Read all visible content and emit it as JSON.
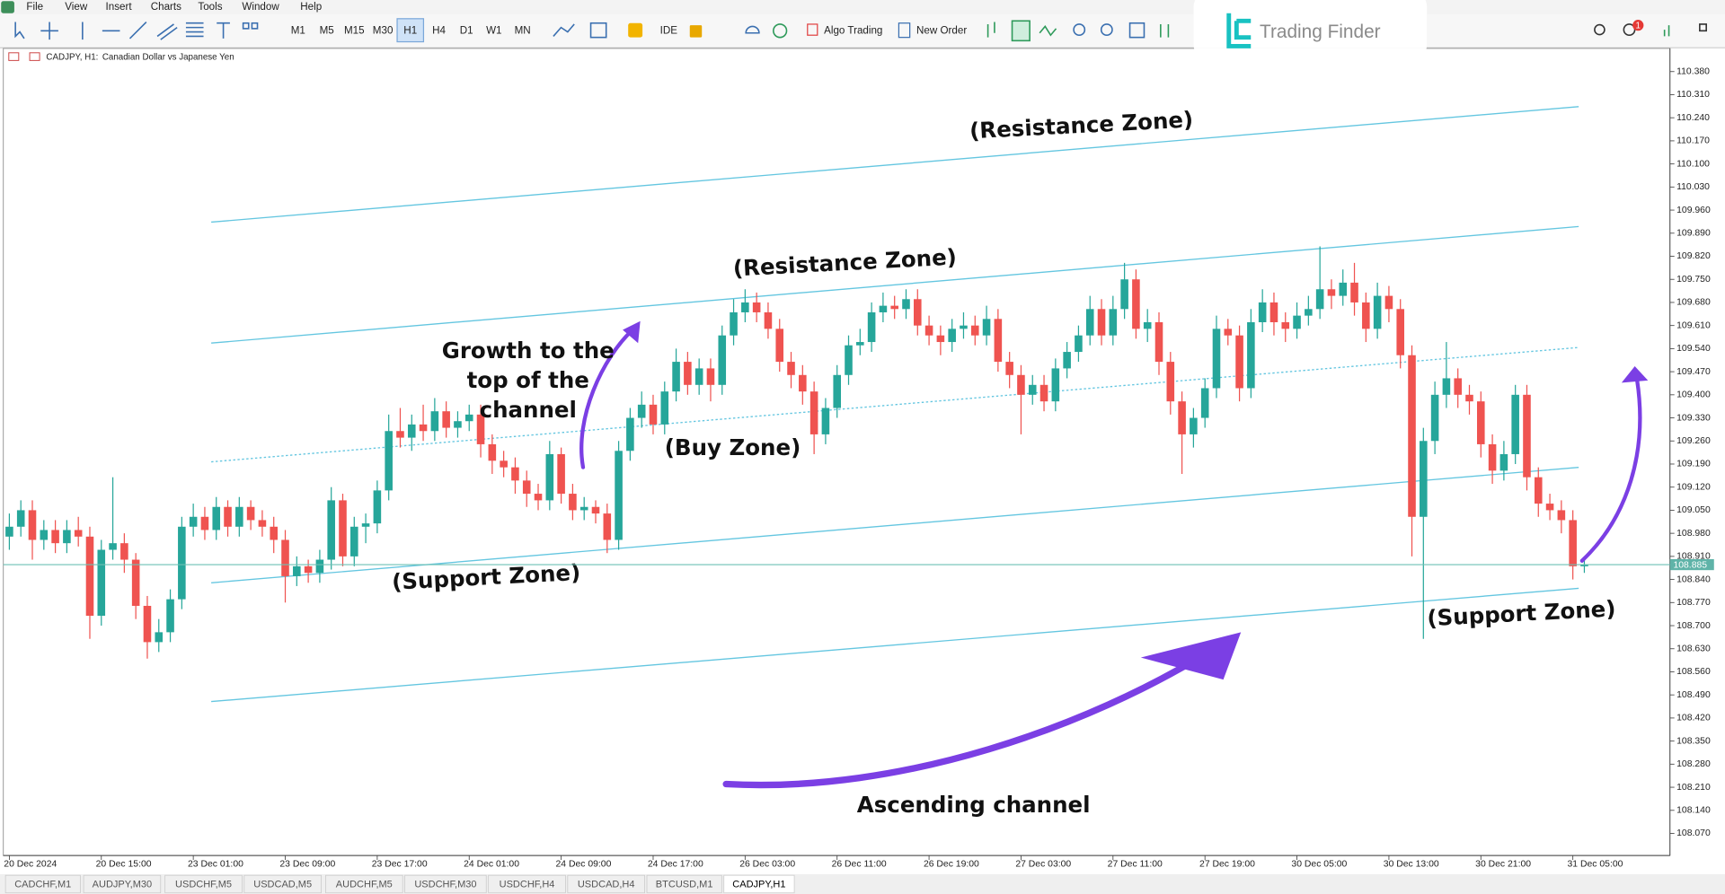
{
  "menu": [
    "File",
    "View",
    "Insert",
    "Charts",
    "Tools",
    "Window",
    "Help"
  ],
  "timeframes": [
    "M1",
    "M5",
    "M15",
    "M30",
    "H1",
    "H4",
    "D1",
    "W1",
    "MN"
  ],
  "toolbar": [
    "IDE",
    "Algo Trading",
    "New Order"
  ],
  "brand": "Trading Finder",
  "notifications": "1",
  "tabs": [
    "CADCHF,M1",
    "AUDJPY,M30",
    "USDCHF,M5",
    "USDCAD,M5",
    "AUDCHF,M5",
    "USDCHF,M30",
    "USDCHF,H4",
    "USDCAD,H4",
    "BTCUSD,M1",
    "CADJPY,H1"
  ],
  "chart_data": {
    "type": "candlestick",
    "title": "CADJPY, H1:",
    "subtitle": "Canadian Dollar vs Japanese Yen",
    "annotations": [
      "(Resistance Zone)",
      "(Resistance Zone)",
      "Growth to the",
      "top of the",
      "channel",
      "(Buy Zone)",
      "(Support Zone)",
      "(Support Zone)",
      "Ascending channel"
    ],
    "up_color": "#26a69a",
    "down_color": "#ef5350",
    "last_price": 108.885,
    "ylim": [
      108.003,
      110.447
    ],
    "yticks": [
      {
        "value": 110.38,
        "label": "110.380"
      },
      {
        "value": 110.31,
        "label": "110.310"
      },
      {
        "value": 110.24,
        "label": "110.240"
      },
      {
        "value": 110.17,
        "label": "110.170"
      },
      {
        "value": 110.1,
        "label": "110.100"
      },
      {
        "value": 110.03,
        "label": "110.030"
      },
      {
        "value": 109.96,
        "label": "109.960"
      },
      {
        "value": 109.89,
        "label": "109.890"
      },
      {
        "value": 109.82,
        "label": "109.820"
      },
      {
        "value": 109.75,
        "label": "109.750"
      },
      {
        "value": 109.68,
        "label": "109.680"
      },
      {
        "value": 109.61,
        "label": "109.610"
      },
      {
        "value": 109.54,
        "label": "109.540"
      },
      {
        "value": 109.47,
        "label": "109.470"
      },
      {
        "value": 109.4,
        "label": "109.400"
      },
      {
        "value": 109.33,
        "label": "109.330"
      },
      {
        "value": 109.26,
        "label": "109.260"
      },
      {
        "value": 109.19,
        "label": "109.190"
      },
      {
        "value": 109.12,
        "label": "109.120"
      },
      {
        "value": 109.05,
        "label": "109.050"
      },
      {
        "value": 108.98,
        "label": "108.980"
      },
      {
        "value": 108.91,
        "label": "108.910"
      },
      {
        "value": 108.84,
        "label": "108.840"
      },
      {
        "value": 108.77,
        "label": "108.770"
      },
      {
        "value": 108.7,
        "label": "108.700"
      },
      {
        "value": 108.63,
        "label": "108.630"
      },
      {
        "value": 108.56,
        "label": "108.560"
      },
      {
        "value": 108.49,
        "label": "108.490"
      },
      {
        "value": 108.42,
        "label": "108.420"
      },
      {
        "value": 108.35,
        "label": "108.350"
      },
      {
        "value": 108.28,
        "label": "108.280"
      },
      {
        "value": 108.21,
        "label": "108.210"
      },
      {
        "value": 108.14,
        "label": "108.140"
      },
      {
        "value": 108.07,
        "label": "108.070"
      }
    ],
    "categories": [
      "20 Dec 2024",
      null,
      null,
      null,
      null,
      null,
      null,
      null,
      "20 Dec 15:00",
      null,
      null,
      null,
      null,
      null,
      null,
      null,
      "23 Dec 01:00",
      null,
      null,
      null,
      null,
      null,
      null,
      null,
      "23 Dec 09:00",
      null,
      null,
      null,
      null,
      null,
      null,
      null,
      "23 Dec 17:00",
      null,
      null,
      null,
      null,
      null,
      null,
      null,
      "24 Dec 01:00",
      null,
      null,
      null,
      null,
      null,
      null,
      null,
      "24 Dec 09:00",
      null,
      null,
      null,
      null,
      null,
      null,
      null,
      "24 Dec 17:00",
      null,
      null,
      null,
      null,
      null,
      null,
      null,
      "26 Dec 03:00",
      null,
      null,
      null,
      null,
      null,
      null,
      null,
      "26 Dec 11:00",
      null,
      null,
      null,
      null,
      null,
      null,
      null,
      "26 Dec 19:00",
      null,
      null,
      null,
      null,
      null,
      null,
      null,
      "27 Dec 03:00",
      null,
      null,
      null,
      null,
      null,
      null,
      null,
      "27 Dec 11:00",
      null,
      null,
      null,
      null,
      null,
      null,
      null,
      "27 Dec 19:00",
      null,
      null,
      null,
      null,
      null,
      null,
      null,
      "30 Dec 05:00",
      null,
      null,
      null,
      null,
      null,
      null,
      null,
      "30 Dec 13:00",
      null,
      null,
      null,
      null,
      null,
      null,
      null,
      "30 Dec 21:00",
      null,
      null,
      null,
      null,
      null,
      null,
      null,
      "31 Dec 05:00",
      null
    ],
    "open": [
      108.97,
      109.0,
      109.05,
      108.96,
      108.99,
      108.95,
      108.99,
      108.97,
      108.73,
      108.93,
      108.95,
      108.9,
      108.76,
      108.65,
      108.68,
      108.78,
      109.0,
      109.03,
      108.99,
      109.06,
      109.0,
      109.06,
      109.02,
      109.0,
      108.96,
      108.85,
      108.88,
      108.86,
      108.9,
      109.08,
      108.91,
      109.0,
      109.01,
      109.11,
      109.29,
      109.27,
      109.31,
      109.29,
      109.35,
      109.3,
      109.32,
      109.34,
      109.25,
      109.2,
      109.18,
      109.14,
      109.1,
      109.08,
      109.22,
      109.1,
      109.05,
      109.06,
      109.04,
      108.96,
      109.23,
      109.33,
      109.37,
      109.31,
      109.41,
      109.5,
      109.43,
      109.48,
      109.43,
      109.58,
      109.65,
      109.68,
      109.65,
      109.6,
      109.5,
      109.46,
      109.41,
      109.28,
      109.36,
      109.46,
      109.55,
      109.56,
      109.65,
      109.67,
      109.66,
      109.69,
      109.61,
      109.58,
      109.56,
      109.6,
      109.61,
      109.58,
      109.63,
      109.5,
      109.46,
      109.4,
      109.43,
      109.38,
      109.48,
      109.53,
      109.58,
      109.66,
      109.58,
      109.66,
      109.75,
      109.6,
      109.62,
      109.5,
      109.38,
      109.28,
      109.33,
      109.42,
      109.6,
      109.58,
      109.42,
      109.62,
      109.68,
      109.62,
      109.6,
      109.64,
      109.66,
      109.72,
      109.7,
      109.74,
      109.68,
      109.6,
      109.7,
      109.66,
      109.52,
      109.03,
      109.26,
      109.4,
      109.45,
      109.4,
      109.38,
      109.25,
      109.17,
      109.22,
      109.4,
      109.15,
      109.07,
      109.05,
      109.02,
      108.88
    ],
    "high": [
      109.04,
      109.08,
      109.08,
      109.02,
      109.02,
      109.02,
      109.03,
      109.0,
      108.96,
      109.15,
      108.98,
      108.92,
      108.79,
      108.72,
      108.81,
      109.03,
      109.07,
      109.06,
      109.09,
      109.08,
      109.09,
      109.08,
      109.05,
      109.03,
      108.99,
      108.91,
      108.9,
      108.93,
      109.12,
      109.1,
      109.03,
      109.04,
      109.14,
      109.34,
      109.36,
      109.34,
      109.37,
      109.39,
      109.38,
      109.35,
      109.37,
      109.37,
      109.28,
      109.23,
      109.21,
      109.17,
      109.13,
      109.26,
      109.24,
      109.13,
      109.09,
      109.08,
      109.07,
      109.26,
      109.36,
      109.41,
      109.4,
      109.44,
      109.54,
      109.53,
      109.51,
      109.51,
      109.61,
      109.69,
      109.72,
      109.71,
      109.68,
      109.63,
      109.53,
      109.49,
      109.44,
      109.39,
      109.49,
      109.58,
      109.6,
      109.68,
      109.71,
      109.7,
      109.72,
      109.72,
      109.64,
      109.61,
      109.63,
      109.65,
      109.64,
      109.67,
      109.66,
      109.53,
      109.49,
      109.46,
      109.46,
      109.51,
      109.56,
      109.61,
      109.7,
      109.69,
      109.7,
      109.8,
      109.78,
      109.66,
      109.65,
      109.53,
      109.41,
      109.36,
      109.45,
      109.64,
      109.63,
      109.61,
      109.66,
      109.72,
      109.71,
      109.65,
      109.68,
      109.7,
      109.85,
      109.75,
      109.78,
      109.8,
      109.71,
      109.74,
      109.73,
      109.69,
      109.55,
      109.3,
      109.44,
      109.56,
      109.48,
      109.43,
      109.41,
      109.28,
      109.26,
      109.43,
      109.43,
      109.18,
      109.1,
      109.08,
      109.05,
      108.9
    ],
    "low": [
      108.93,
      108.97,
      108.9,
      108.93,
      108.92,
      108.92,
      108.94,
      108.66,
      108.7,
      108.9,
      108.86,
      108.72,
      108.6,
      108.62,
      108.65,
      108.75,
      108.97,
      108.96,
      108.96,
      108.97,
      108.97,
      108.99,
      108.97,
      108.92,
      108.77,
      108.82,
      108.83,
      108.83,
      108.87,
      108.88,
      108.88,
      108.95,
      108.98,
      109.08,
      109.24,
      109.23,
      109.26,
      109.26,
      109.27,
      109.27,
      109.29,
      109.21,
      109.16,
      109.15,
      109.1,
      109.06,
      109.05,
      109.05,
      109.07,
      109.02,
      109.02,
      109.01,
      108.92,
      108.93,
      109.2,
      109.3,
      109.28,
      109.28,
      109.38,
      109.4,
      109.4,
      109.38,
      109.4,
      109.55,
      109.62,
      109.62,
      109.57,
      109.47,
      109.42,
      109.37,
      109.22,
      109.25,
      109.33,
      109.43,
      109.52,
      109.53,
      109.62,
      109.63,
      109.63,
      109.58,
      109.55,
      109.52,
      109.53,
      109.57,
      109.55,
      109.55,
      109.47,
      109.42,
      109.28,
      109.37,
      109.35,
      109.35,
      109.45,
      109.5,
      109.55,
      109.55,
      109.55,
      109.63,
      109.57,
      109.56,
      109.46,
      109.34,
      109.16,
      109.24,
      109.3,
      109.39,
      109.55,
      109.38,
      109.39,
      109.59,
      109.58,
      109.56,
      109.57,
      109.61,
      109.63,
      109.66,
      109.67,
      109.64,
      109.56,
      109.57,
      109.62,
      109.48,
      108.91,
      108.66,
      109.22,
      109.36,
      109.36,
      109.34,
      109.21,
      109.13,
      109.14,
      109.19,
      109.11,
      109.03,
      109.02,
      108.98,
      108.84,
      108.86
    ],
    "close": [
      109.0,
      109.05,
      108.96,
      108.99,
      108.95,
      108.99,
      108.97,
      108.73,
      108.93,
      108.95,
      108.9,
      108.76,
      108.65,
      108.68,
      108.78,
      109.0,
      109.03,
      108.99,
      109.06,
      109.0,
      109.06,
      109.02,
      109.0,
      108.96,
      108.85,
      108.88,
      108.86,
      108.9,
      109.08,
      108.91,
      109.0,
      109.01,
      109.11,
      109.29,
      109.27,
      109.31,
      109.29,
      109.35,
      109.3,
      109.32,
      109.34,
      109.25,
      109.2,
      109.18,
      109.14,
      109.1,
      109.08,
      109.22,
      109.1,
      109.05,
      109.06,
      109.04,
      108.96,
      109.23,
      109.33,
      109.37,
      109.31,
      109.41,
      109.5,
      109.43,
      109.48,
      109.43,
      109.58,
      109.65,
      109.68,
      109.65,
      109.6,
      109.5,
      109.46,
      109.41,
      109.28,
      109.36,
      109.46,
      109.55,
      109.56,
      109.65,
      109.67,
      109.66,
      109.69,
      109.61,
      109.58,
      109.56,
      109.6,
      109.61,
      109.58,
      109.63,
      109.5,
      109.46,
      109.4,
      109.43,
      109.38,
      109.48,
      109.53,
      109.58,
      109.66,
      109.58,
      109.66,
      109.75,
      109.6,
      109.62,
      109.5,
      109.38,
      109.28,
      109.33,
      109.42,
      109.6,
      109.58,
      109.42,
      109.62,
      109.68,
      109.62,
      109.6,
      109.64,
      109.66,
      109.72,
      109.7,
      109.74,
      109.68,
      109.6,
      109.7,
      109.66,
      109.52,
      109.03,
      109.26,
      109.4,
      109.45,
      109.4,
      109.38,
      109.25,
      109.17,
      109.22,
      109.4,
      109.15,
      109.07,
      109.05,
      109.02,
      108.88,
      108.885
    ]
  }
}
